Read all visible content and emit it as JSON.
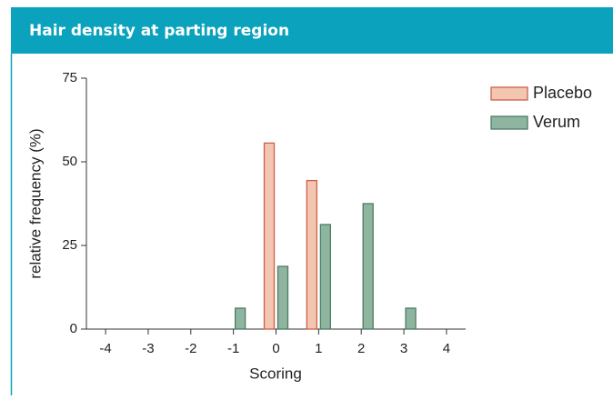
{
  "chart_data": {
    "type": "bar",
    "title": "Hair density at parting region",
    "xlabel": "Scoring",
    "ylabel": "relative frequency (%)",
    "x": [
      -4,
      -3,
      -2,
      -1,
      0,
      1,
      2,
      3,
      4
    ],
    "xlim": [
      -4.45,
      4.45
    ],
    "xticks": [
      -4,
      -3,
      -2,
      -1,
      0,
      1,
      2,
      3,
      4
    ],
    "ylim": [
      0,
      75
    ],
    "yticks": [
      0,
      25,
      50,
      75
    ],
    "legend": "top-right",
    "series": [
      {
        "name": "Placebo",
        "color": "#f2c6b0",
        "edgecolor": "#cf5f48",
        "values": [
          0,
          0,
          0,
          0,
          55.6,
          44.4,
          0,
          0,
          0
        ]
      },
      {
        "name": "Verum",
        "color": "#8fb5a0",
        "edgecolor": "#4b7d63",
        "values": [
          0,
          0,
          0,
          6.25,
          18.75,
          31.25,
          37.5,
          6.25,
          0
        ]
      }
    ]
  }
}
